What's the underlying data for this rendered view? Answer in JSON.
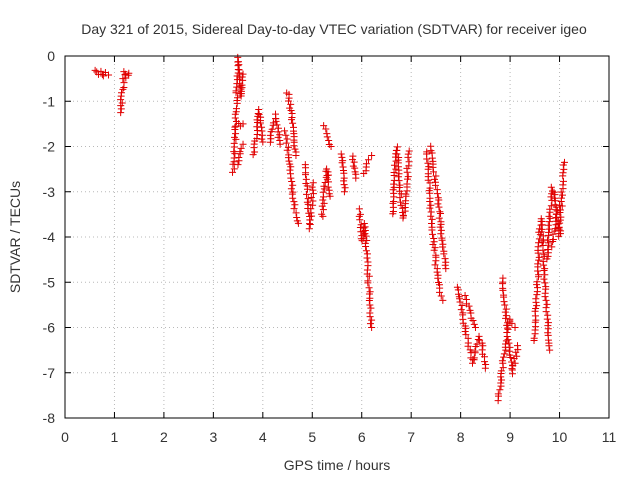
{
  "chart_data": {
    "type": "scatter",
    "title": "Day 321 of 2015, Sidereal Day-to-day VTEC variation (SDTVAR) for receiver igeo",
    "xlabel": "GPS time / hours",
    "ylabel": "SDTVAR / TECUs",
    "xlim": [
      0,
      11
    ],
    "ylim": [
      -8,
      0
    ],
    "xticks": [
      "0",
      "1",
      "2",
      "3",
      "4",
      "5",
      "6",
      "7",
      "8",
      "9",
      "10",
      "11"
    ],
    "yticks": [
      "0",
      "-1",
      "-2",
      "-3",
      "-4",
      "-5",
      "-6",
      "-7",
      "-8"
    ],
    "grid": true,
    "marker": "+",
    "series": [
      {
        "name": "SDTVAR",
        "color": "#e00000",
        "segments": [
          [
            [
              0.62,
              -0.3
            ],
            [
              0.67,
              -0.42
            ],
            [
              0.72,
              -0.35
            ],
            [
              0.78,
              -0.45
            ],
            [
              0.83,
              -0.38
            ],
            [
              0.88,
              -0.42
            ]
          ],
          [
            [
              1.12,
              -1.25
            ],
            [
              1.15,
              -0.9
            ],
            [
              1.18,
              -0.6
            ],
            [
              1.21,
              -0.35
            ],
            [
              1.25,
              -0.5
            ],
            [
              1.29,
              -0.38
            ]
          ],
          [
            [
              3.4,
              -2.55
            ],
            [
              3.43,
              -2.1
            ],
            [
              3.46,
              -1.3
            ],
            [
              3.48,
              -0.6
            ],
            [
              3.5,
              -0.05
            ],
            [
              3.53,
              -0.45
            ],
            [
              3.56,
              -0.9
            ],
            [
              3.58,
              -0.7
            ],
            [
              3.6,
              -0.4
            ]
          ],
          [
            [
              3.45,
              -1.55
            ],
            [
              3.5,
              -1.5
            ],
            [
              3.55,
              -1.55
            ],
            [
              3.6,
              -1.5
            ]
          ],
          [
            [
              3.5,
              -2.4
            ],
            [
              3.55,
              -2.1
            ],
            [
              3.6,
              -1.95
            ]
          ],
          [
            [
              3.82,
              -2.2
            ],
            [
              3.86,
              -1.8
            ],
            [
              3.9,
              -1.4
            ],
            [
              3.93,
              -1.2
            ],
            [
              3.97,
              -1.5
            ],
            [
              4.0,
              -1.9
            ]
          ],
          [
            [
              4.15,
              -1.9
            ],
            [
              4.2,
              -1.55
            ],
            [
              4.26,
              -1.3
            ],
            [
              4.3,
              -1.6
            ],
            [
              4.35,
              -1.95
            ]
          ],
          [
            [
              4.5,
              -0.8
            ],
            [
              4.53,
              -1.0
            ],
            [
              4.57,
              -1.2
            ],
            [
              4.6,
              -1.5
            ],
            [
              4.63,
              -1.85
            ],
            [
              4.67,
              -2.2
            ]
          ],
          [
            [
              4.45,
              -1.65
            ],
            [
              4.48,
              -1.75
            ],
            [
              4.5,
              -2.0
            ],
            [
              4.52,
              -2.25
            ],
            [
              4.55,
              -2.45
            ],
            [
              4.58,
              -2.7
            ],
            [
              4.6,
              -3.0
            ],
            [
              4.63,
              -3.3
            ],
            [
              4.68,
              -3.55
            ],
            [
              4.72,
              -3.7
            ]
          ],
          [
            [
              4.85,
              -2.4
            ],
            [
              4.88,
              -2.8
            ],
            [
              4.92,
              -3.3
            ],
            [
              4.95,
              -3.8
            ],
            [
              4.99,
              -3.3
            ],
            [
              5.02,
              -2.8
            ]
          ],
          [
            [
              5.2,
              -3.55
            ],
            [
              5.23,
              -3.1
            ],
            [
              5.27,
              -2.7
            ],
            [
              5.3,
              -2.5
            ],
            [
              5.33,
              -2.8
            ],
            [
              5.36,
              -3.1
            ]
          ],
          [
            [
              5.25,
              -1.55
            ],
            [
              5.32,
              -1.8
            ],
            [
              5.38,
              -2.0
            ]
          ],
          [
            [
              5.6,
              -2.15
            ],
            [
              5.63,
              -2.6
            ],
            [
              5.65,
              -3.0
            ]
          ],
          [
            [
              5.82,
              -2.2
            ],
            [
              5.85,
              -2.5
            ],
            [
              5.88,
              -2.7
            ]
          ],
          [
            [
              5.95,
              -3.4
            ],
            [
              5.98,
              -3.8
            ],
            [
              6.02,
              -4.1
            ],
            [
              6.06,
              -3.7
            ],
            [
              6.1,
              -4.3
            ],
            [
              6.13,
              -4.8
            ],
            [
              6.17,
              -5.5
            ],
            [
              6.2,
              -6.0
            ]
          ],
          [
            [
              6.05,
              -2.6
            ],
            [
              6.1,
              -2.4
            ],
            [
              6.15,
              -2.3
            ],
            [
              6.2,
              -2.2
            ]
          ],
          [
            [
              6.62,
              -3.5
            ],
            [
              6.65,
              -2.9
            ],
            [
              6.68,
              -2.4
            ],
            [
              6.72,
              -2.0
            ],
            [
              6.75,
              -2.6
            ],
            [
              6.8,
              -3.3
            ],
            [
              6.85,
              -3.6
            ],
            [
              6.9,
              -3.2
            ],
            [
              6.93,
              -2.5
            ],
            [
              6.96,
              -2.1
            ]
          ],
          [
            [
              7.32,
              -2.1
            ],
            [
              7.35,
              -2.6
            ],
            [
              7.38,
              -3.2
            ],
            [
              7.41,
              -3.7
            ],
            [
              7.45,
              -4.1
            ],
            [
              7.5,
              -4.6
            ],
            [
              7.55,
              -5.0
            ],
            [
              7.6,
              -5.3
            ],
            [
              7.64,
              -5.4
            ]
          ],
          [
            [
              7.4,
              -2.0
            ],
            [
              7.45,
              -2.4
            ],
            [
              7.5,
              -2.8
            ],
            [
              7.55,
              -3.2
            ],
            [
              7.6,
              -3.8
            ],
            [
              7.65,
              -4.3
            ],
            [
              7.7,
              -4.7
            ]
          ],
          [
            [
              7.95,
              -5.1
            ],
            [
              8.02,
              -5.6
            ],
            [
              8.1,
              -6.1
            ],
            [
              8.18,
              -6.5
            ],
            [
              8.25,
              -6.8
            ],
            [
              8.3,
              -6.5
            ],
            [
              8.38,
              -6.2
            ],
            [
              8.45,
              -6.5
            ],
            [
              8.5,
              -6.9
            ]
          ],
          [
            [
              8.1,
              -5.3
            ],
            [
              8.2,
              -5.7
            ],
            [
              8.3,
              -6.0
            ]
          ],
          [
            [
              8.75,
              -7.6
            ],
            [
              8.8,
              -7.3
            ],
            [
              8.85,
              -6.8
            ],
            [
              8.9,
              -6.5
            ],
            [
              8.95,
              -6.2
            ],
            [
              9.0,
              -6.6
            ],
            [
              9.05,
              -7.0
            ],
            [
              9.1,
              -6.7
            ],
            [
              9.15,
              -6.4
            ]
          ],
          [
            [
              8.85,
              -4.9
            ],
            [
              8.9,
              -5.5
            ],
            [
              8.95,
              -6.1
            ],
            [
              9.0,
              -5.8
            ],
            [
              9.05,
              -5.9
            ],
            [
              9.1,
              -6.0
            ]
          ],
          [
            [
              9.5,
              -6.3
            ],
            [
              9.53,
              -5.5
            ],
            [
              9.57,
              -4.6
            ],
            [
              9.6,
              -3.8
            ],
            [
              9.63,
              -3.6
            ],
            [
              9.67,
              -4.2
            ],
            [
              9.7,
              -5.0
            ],
            [
              9.75,
              -5.8
            ],
            [
              9.8,
              -6.5
            ]
          ],
          [
            [
              9.75,
              -4.5
            ],
            [
              9.8,
              -3.6
            ],
            [
              9.85,
              -2.9
            ],
            [
              9.9,
              -3.0
            ],
            [
              9.95,
              -3.5
            ],
            [
              10.0,
              -4.0
            ],
            [
              10.05,
              -3.0
            ],
            [
              10.08,
              -2.5
            ],
            [
              10.1,
              -2.35
            ]
          ],
          [
            [
              9.85,
              -4.2
            ],
            [
              9.9,
              -3.8
            ],
            [
              9.95,
              -3.4
            ],
            [
              10.0,
              -3.3
            ]
          ]
        ]
      }
    ]
  }
}
